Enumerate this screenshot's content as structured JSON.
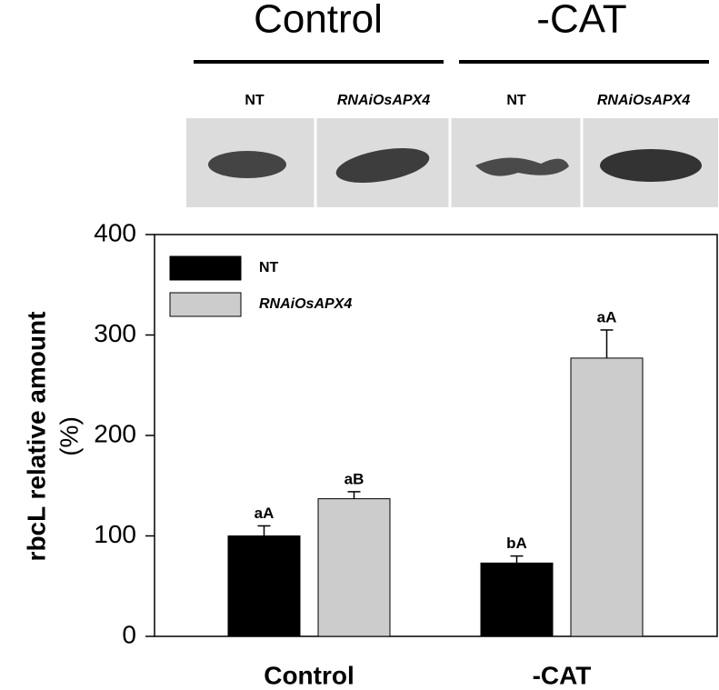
{
  "blot": {
    "groups": [
      "Control",
      "-CAT"
    ],
    "lanes": [
      "NT",
      "RNAiOsAPX4",
      "NT",
      "RNAiOsAPX4"
    ]
  },
  "chart_data": {
    "type": "bar",
    "y_label": "rbcL relative amount",
    "y_label_unit": "(%)",
    "categories": [
      "Control",
      "-CAT"
    ],
    "series": [
      {
        "name": "NT",
        "color": "#000000",
        "values": [
          100,
          73
        ],
        "errors": [
          10,
          7
        ],
        "significance": [
          "aA",
          "bA"
        ]
      },
      {
        "name": "RNAiOsAPX4",
        "color": "#cccccc",
        "values": [
          137,
          277
        ],
        "errors": [
          7,
          28
        ],
        "significance": [
          "aB",
          "aA"
        ]
      }
    ],
    "ylim": [
      0,
      400
    ],
    "yticks": [
      0,
      100,
      200,
      300,
      400
    ],
    "legend": "upper left"
  }
}
